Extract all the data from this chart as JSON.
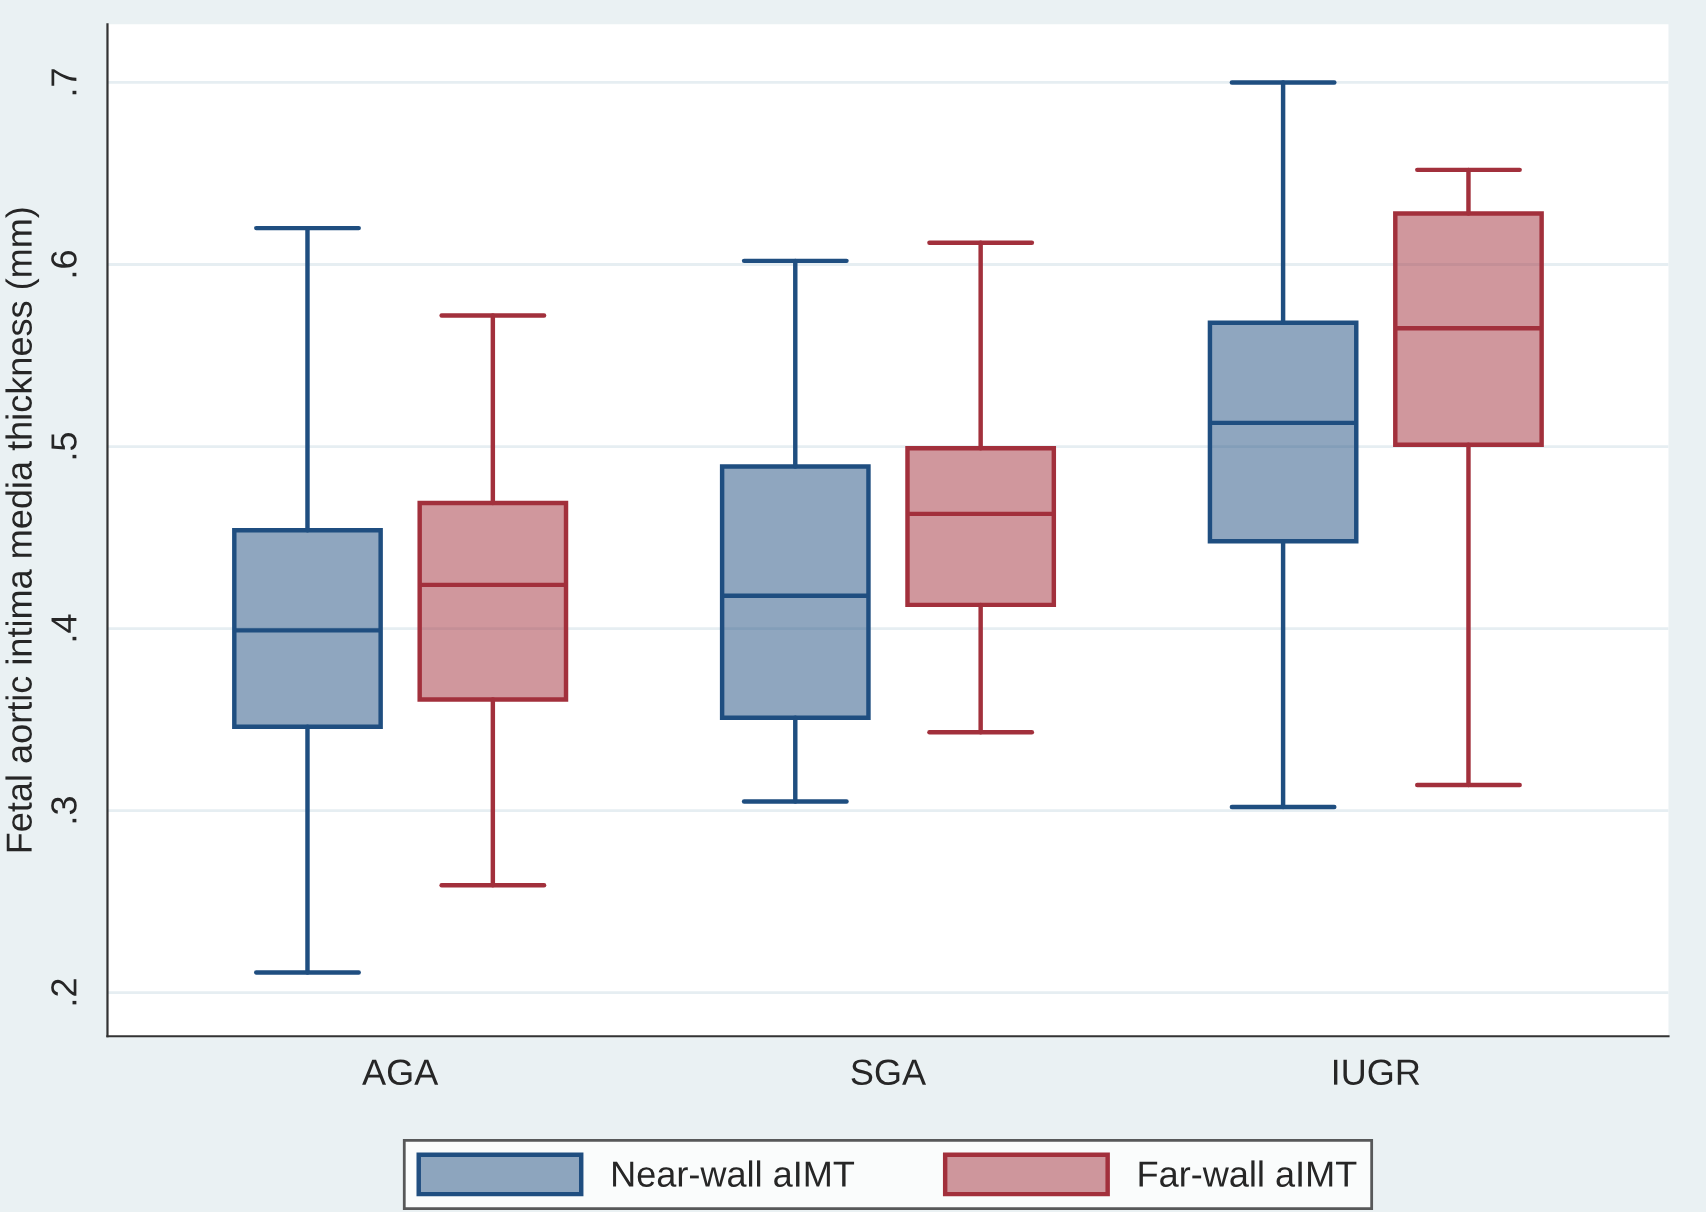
{
  "chart_data": {
    "type": "box",
    "ylabel": "Fetal aortic intima media thickness (mm)",
    "categories": [
      "AGA",
      "SGA",
      "IUGR"
    ],
    "series": [
      {
        "name": "Near-wall aIMT",
        "color": "#1f4e80",
        "boxes": [
          {
            "low": 0.211,
            "q1": 0.346,
            "median": 0.399,
            "q3": 0.454,
            "high": 0.62
          },
          {
            "low": 0.305,
            "q1": 0.351,
            "median": 0.418,
            "q3": 0.489,
            "high": 0.602
          },
          {
            "low": 0.302,
            "q1": 0.448,
            "median": 0.513,
            "q3": 0.568,
            "high": 0.7
          }
        ]
      },
      {
        "name": "Far-wall aIMT",
        "color": "#a2303c",
        "boxes": [
          {
            "low": 0.259,
            "q1": 0.361,
            "median": 0.424,
            "q3": 0.469,
            "high": 0.572
          },
          {
            "low": 0.343,
            "q1": 0.413,
            "median": 0.463,
            "q3": 0.499,
            "high": 0.612
          },
          {
            "low": 0.314,
            "q1": 0.501,
            "median": 0.565,
            "q3": 0.628,
            "high": 0.652
          }
        ]
      }
    ],
    "ylim": [
      0.176,
      0.732
    ],
    "yticks": [
      {
        "value": 0.2,
        "label": ".2"
      },
      {
        "value": 0.3,
        "label": ".3"
      },
      {
        "value": 0.4,
        "label": ".4"
      },
      {
        "value": 0.5,
        "label": ".5"
      },
      {
        "value": 0.6,
        "label": ".6"
      },
      {
        "value": 0.7,
        "label": ".7"
      }
    ],
    "grid": "y",
    "legend": "bottom"
  }
}
